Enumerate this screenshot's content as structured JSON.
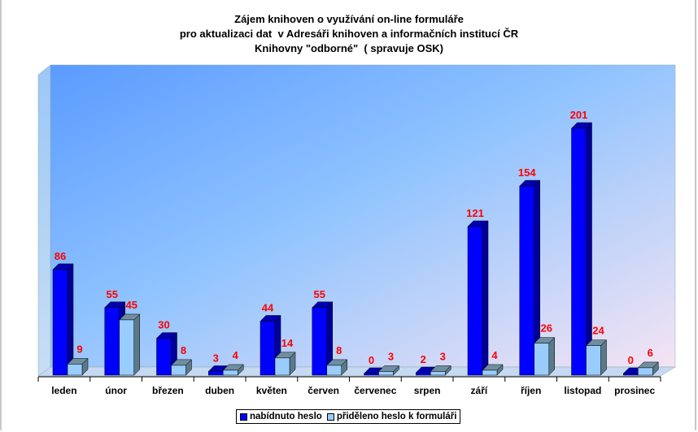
{
  "chart_data": {
    "type": "bar",
    "title": [
      "Zájem knihoven o využívání on-line formuláře",
      "pro aktualizaci dat  v Adresáři knihoven a informačních institucí ČR",
      "Knihovny \"odborné\"  ( spravuje OSK)"
    ],
    "categories": [
      "leden",
      "únor",
      "březen",
      "duben",
      "květen",
      "červen",
      "červenec",
      "srpen",
      "září",
      "říjen",
      "listopad",
      "prosinec"
    ],
    "series": [
      {
        "name": "nabídnuto heslo",
        "color": "#0000ff",
        "values": [
          86,
          55,
          30,
          3,
          44,
          55,
          0,
          2,
          121,
          154,
          201,
          0
        ]
      },
      {
        "name": "přiděleno heslo k formuláři",
        "color": "#99ccff",
        "values": [
          9,
          45,
          8,
          4,
          14,
          8,
          3,
          3,
          4,
          26,
          24,
          6
        ]
      }
    ],
    "label_color": "#ff0000",
    "ylim": [
      0,
      201
    ],
    "legend": "bottom",
    "grid": false
  }
}
